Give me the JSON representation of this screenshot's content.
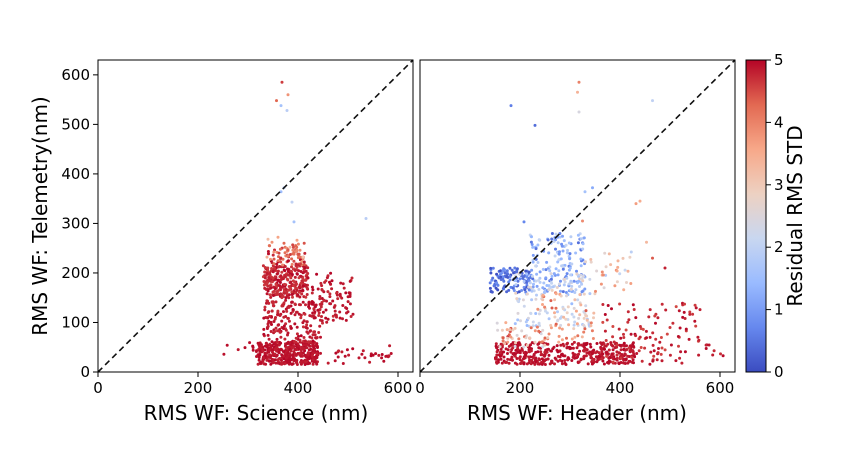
{
  "chart_data": [
    {
      "type": "scatter",
      "xlabel": "RMS WF: Science (nm)",
      "ylabel": "RMS WF: Telemetry(nm)",
      "xlim": [
        0,
        630
      ],
      "ylim": [
        0,
        630
      ],
      "xticks": [
        "0",
        "200",
        "400",
        "600"
      ],
      "yticks": [
        "0",
        "100",
        "200",
        "300",
        "400",
        "500",
        "600"
      ],
      "reference_line": {
        "from": [
          0,
          0
        ],
        "to": [
          630,
          630
        ],
        "style": "dashed"
      },
      "grid": false,
      "points": [
        [
          368,
          585,
          4.6
        ],
        [
          357,
          548,
          4.3
        ],
        [
          380,
          560,
          3.8
        ],
        [
          366,
          538,
          1.6
        ],
        [
          378,
          528,
          1.9
        ],
        [
          372,
          372,
          1.8
        ],
        [
          366,
          364,
          1.5
        ],
        [
          388,
          343,
          2.0
        ],
        [
          536,
          310,
          1.9
        ],
        [
          392,
          303,
          1.6
        ],
        [
          340,
          268,
          3.2
        ],
        [
          348,
          262,
          3.8
        ],
        [
          360,
          272,
          3.6
        ],
        [
          372,
          260,
          4.3
        ],
        [
          384,
          252,
          3.3
        ],
        [
          398,
          266,
          3.6
        ],
        [
          404,
          246,
          3.9
        ],
        [
          392,
          238,
          4.2
        ],
        [
          362,
          240,
          4.6
        ],
        [
          338,
          232,
          3.5
        ],
        [
          410,
          232,
          3.1
        ],
        [
          352,
          228,
          4.4
        ],
        [
          380,
          224,
          5.0
        ],
        [
          396,
          218,
          4.8
        ]
      ],
      "dense_regions": [
        {
          "x": [
            330,
            420
          ],
          "y": [
            150,
            215
          ],
          "c": [
            4.6,
            5
          ],
          "count": 260
        },
        {
          "x": [
            340,
            415
          ],
          "y": [
            215,
            260
          ],
          "c": [
            3.8,
            5
          ],
          "count": 70
        },
        {
          "x": [
            320,
            440
          ],
          "y": [
            15,
            60
          ],
          "c": [
            4.8,
            5
          ],
          "count": 330
        },
        {
          "x": [
            310,
            590
          ],
          "y": [
            15,
            55
          ],
          "c": [
            4.8,
            5
          ],
          "count": 70
        },
        {
          "x": [
            330,
            450
          ],
          "y": [
            60,
            145
          ],
          "c": [
            4.7,
            5
          ],
          "count": 190
        },
        {
          "x": [
            420,
            510
          ],
          "y": [
            100,
            200
          ],
          "c": [
            4.7,
            5
          ],
          "count": 90
        },
        {
          "x": [
            230,
            330
          ],
          "y": [
            30,
            60
          ],
          "c": [
            4.8,
            5
          ],
          "count": 14
        }
      ]
    },
    {
      "type": "scatter",
      "xlabel": "RMS WF: Header (nm)",
      "ylabel": "",
      "xlim": [
        0,
        630
      ],
      "ylim": [
        0,
        630
      ],
      "xticks": [
        "0",
        "200",
        "400",
        "600"
      ],
      "reference_line": {
        "from": [
          0,
          0
        ],
        "to": [
          630,
          630
        ],
        "style": "dashed"
      },
      "grid": false,
      "points": [
        [
          318,
          585,
          4.0
        ],
        [
          315,
          565,
          3.4
        ],
        [
          182,
          538,
          0.6
        ],
        [
          230,
          498,
          0.4
        ],
        [
          318,
          525,
          2.4
        ],
        [
          465,
          548,
          2.0
        ],
        [
          432,
          340,
          3.7
        ],
        [
          345,
          372,
          1.2
        ],
        [
          330,
          364,
          1.6
        ],
        [
          208,
          303,
          0.7
        ],
        [
          465,
          230,
          4.4
        ],
        [
          490,
          210,
          4.8
        ],
        [
          325,
          305,
          3.9
        ],
        [
          453,
          262,
          3.3
        ],
        [
          440,
          345,
          3.5
        ]
      ],
      "dense_regions": [
        {
          "x": [
            140,
            220
          ],
          "y": [
            160,
            210
          ],
          "c": [
            0,
            0.9
          ],
          "count": 110
        },
        {
          "x": [
            220,
            330
          ],
          "y": [
            160,
            280
          ],
          "c": [
            0.4,
            2.2
          ],
          "count": 170
        },
        {
          "x": [
            190,
            340
          ],
          "y": [
            90,
            200
          ],
          "c": [
            1.4,
            3.0
          ],
          "count": 120
        },
        {
          "x": [
            230,
            350
          ],
          "y": [
            60,
            160
          ],
          "c": [
            2.8,
            4.4
          ],
          "count": 60
        },
        {
          "x": [
            150,
            430
          ],
          "y": [
            15,
            60
          ],
          "c": [
            4.8,
            5
          ],
          "count": 420
        },
        {
          "x": [
            150,
            260
          ],
          "y": [
            50,
            100
          ],
          "c": [
            2.2,
            4.8
          ],
          "count": 45
        },
        {
          "x": [
            360,
            560
          ],
          "y": [
            15,
            140
          ],
          "c": [
            4.5,
            5
          ],
          "count": 120
        },
        {
          "x": [
            560,
            620
          ],
          "y": [
            30,
            60
          ],
          "c": [
            4.6,
            5
          ],
          "count": 8
        },
        {
          "x": [
            330,
            430
          ],
          "y": [
            160,
            260
          ],
          "c": [
            1.8,
            4.0
          ],
          "count": 30
        }
      ]
    }
  ],
  "colorbar": {
    "label": "Residual RMS STD",
    "min": 0,
    "max": 5,
    "ticks": [
      "0",
      "1",
      "2",
      "3",
      "4",
      "5"
    ],
    "colormap": "coolwarm",
    "colors": [
      "#3b4cc0",
      "#6688ee",
      "#9abbff",
      "#c9d7f0",
      "#edd1c2",
      "#f7a889",
      "#e26952",
      "#b40426"
    ]
  }
}
